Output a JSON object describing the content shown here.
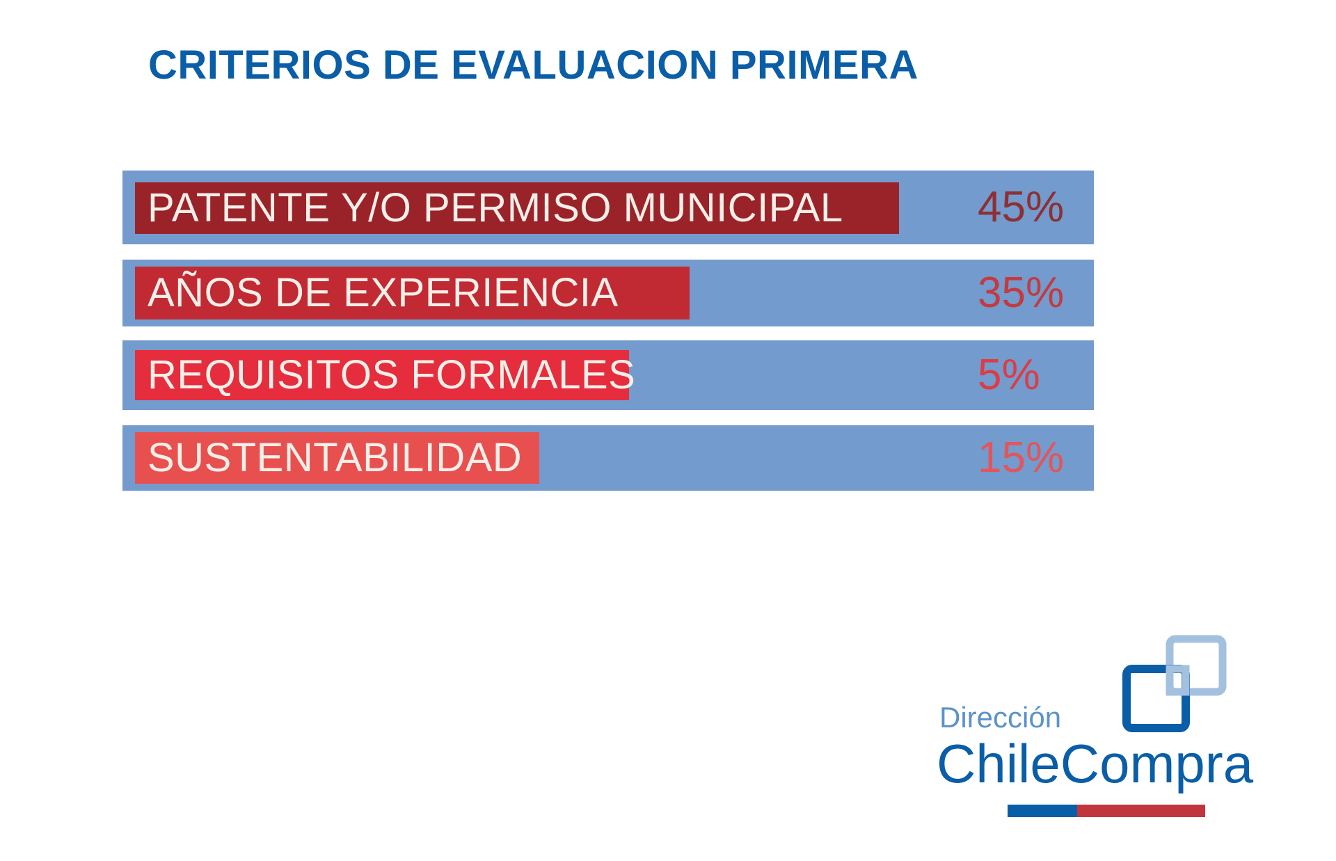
{
  "chart_data": {
    "type": "bar",
    "title": "CRITERIOS DE EVALUACION PRIMERA",
    "categories": [
      "PATENTE Y/O PERMISO MUNICIPAL",
      "AÑOS DE EXPERIENCIA",
      "REQUISITOS FORMALES",
      "SUSTENTABILIDAD"
    ],
    "values": [
      45,
      35,
      5,
      15
    ],
    "value_labels": [
      "45%",
      "35%",
      "5%",
      "15%"
    ],
    "bar_colors": [
      "#9a232a",
      "#c12a33",
      "#e52d3d",
      "#e8504f"
    ],
    "value_colors": [
      "#8e2f33",
      "#c43a41",
      "#dd3c45",
      "#e3555a"
    ],
    "track_color": "#739bcd",
    "orientation": "horizontal"
  },
  "logo": {
    "line1": "Dirección",
    "line2": "ChileCompra",
    "colors": {
      "primary": "#0a5ea8",
      "secondary": "#5b93c9",
      "light": "#a3c0de",
      "stripe_blue": "#0a5ea8",
      "stripe_red": "#c1353c"
    }
  }
}
